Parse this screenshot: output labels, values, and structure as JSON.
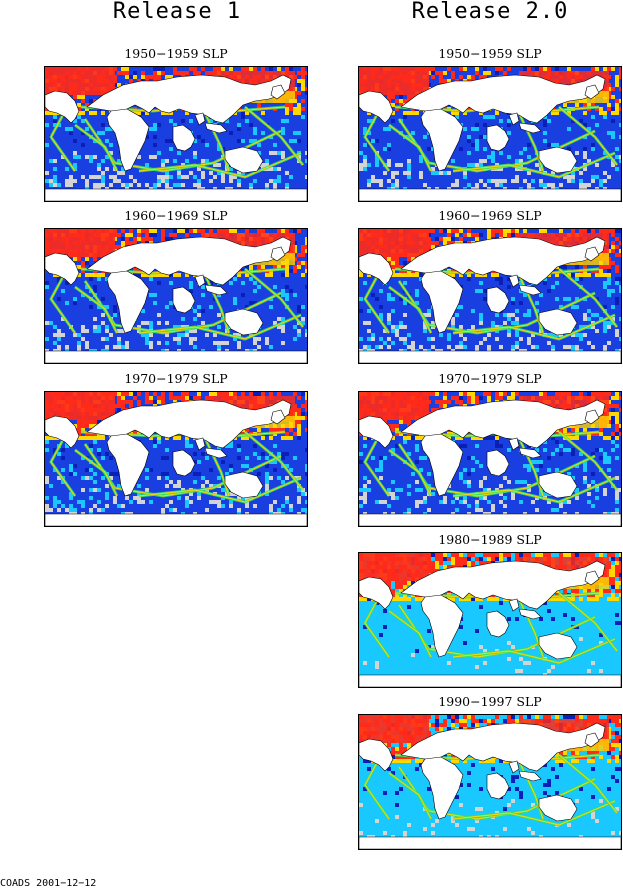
{
  "headings": {
    "left": "Release 1",
    "right": "Release 2.0"
  },
  "panels": [
    {
      "title": "1950−1959 SLP",
      "column": "left"
    },
    {
      "title": "1960−1969 SLP",
      "column": "left"
    },
    {
      "title": "1970−1979 SLP",
      "column": "left"
    },
    {
      "title": "1950−1959 SLP",
      "column": "right"
    },
    {
      "title": "1960−1969 SLP",
      "column": "right"
    },
    {
      "title": "1970−1979 SLP",
      "column": "right"
    },
    {
      "title": "1980−1989 SLP",
      "column": "right"
    },
    {
      "title": "1990−1997 SLP",
      "column": "right"
    }
  ],
  "footer": "COADS 2001−12−12",
  "colors": {
    "high": "#ff2a1a",
    "mid_high": "#ffd800",
    "mid": "#2ee06a",
    "mid_low": "#19c8ff",
    "low": "#1a3fe0",
    "very_low": "#0a1fb8",
    "no_data": "#d4d4d4",
    "land": "#ffffff"
  }
}
